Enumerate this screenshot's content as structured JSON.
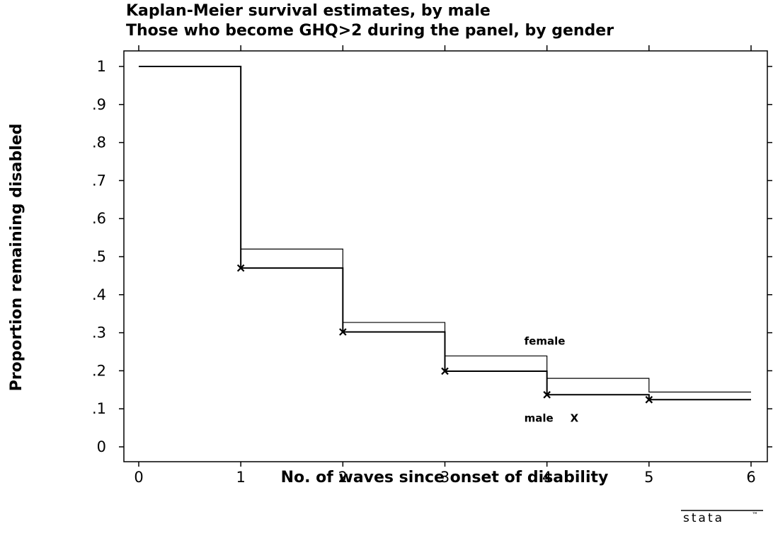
{
  "chart_data": {
    "type": "line",
    "step": true,
    "title": "Kaplan-Meier survival estimates, by male",
    "subtitle": "Those who become GHQ>2 during the panel, by gender",
    "xlabel": "No. of waves since onset of disability",
    "ylabel": "Proportion remaining disabled",
    "xlim": [
      0,
      6
    ],
    "ylim": [
      0,
      1
    ],
    "xticks": [
      "0",
      "1",
      "2",
      "3",
      "4",
      "5",
      "6"
    ],
    "yticks": [
      "0",
      ".1",
      ".2",
      ".3",
      ".4",
      ".5",
      ".6",
      ".7",
      ".8",
      ".9",
      "1"
    ],
    "grid": false,
    "series": [
      {
        "name": "female",
        "x": [
          0,
          1,
          2,
          3,
          4,
          5,
          6
        ],
        "y": [
          1,
          0.52,
          0.327,
          0.239,
          0.18,
          0.144,
          0.144
        ]
      },
      {
        "name": "male",
        "x": [
          0,
          1,
          2,
          3,
          4,
          5,
          6
        ],
        "y": [
          1,
          0.47,
          0.302,
          0.199,
          0.137,
          0.124,
          0.124
        ]
      }
    ],
    "censor_marks": [
      {
        "x": 1.0,
        "y": 0.47
      },
      {
        "x": 2.0,
        "y": 0.302
      },
      {
        "x": 3.0,
        "y": 0.199
      },
      {
        "x": 4.0,
        "y": 0.137
      },
      {
        "x": 5.0,
        "y": 0.124
      }
    ],
    "annotations": [
      {
        "text": "female",
        "x": 4.0,
        "y": 0.28
      },
      {
        "text": "male",
        "x": 3.93,
        "y": 0.075,
        "marker": "X"
      }
    ]
  },
  "branding": {
    "logo_text": "stata",
    "logo_tm": "™"
  }
}
